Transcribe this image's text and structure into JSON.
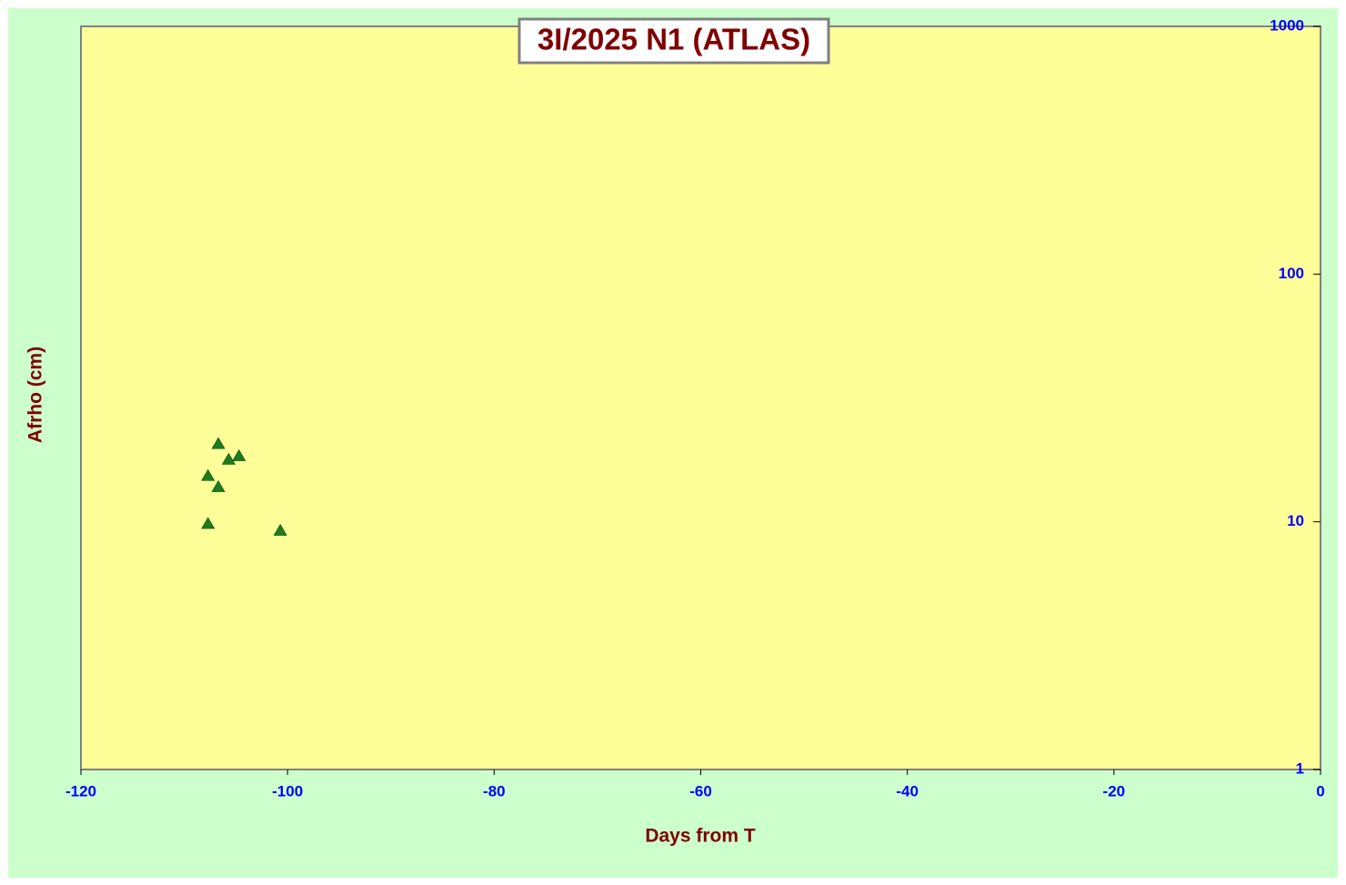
{
  "chart_data": {
    "type": "scatter",
    "title": "3I/2025 N1 (ATLAS)",
    "x_label": "Days from T",
    "y_label": "Afrho (cm)",
    "xlim": [
      -120,
      0
    ],
    "xticks": [
      -120,
      -100,
      -80,
      -60,
      -40,
      -20,
      0
    ],
    "ylim": [
      1,
      1000
    ],
    "yticks": [
      1,
      10,
      100,
      1000
    ],
    "y_scale": "log",
    "y_axis_side": "right",
    "marker": "triangle",
    "series": [
      {
        "color": "#1e7b1e",
        "x": [
          -106.7,
          -105.7,
          -104.7,
          -107.7,
          -106.7,
          -107.7,
          -100.7
        ],
        "values": [
          20.6,
          17.8,
          18.4,
          15.3,
          13.8,
          9.8,
          9.2
        ]
      }
    ]
  }
}
